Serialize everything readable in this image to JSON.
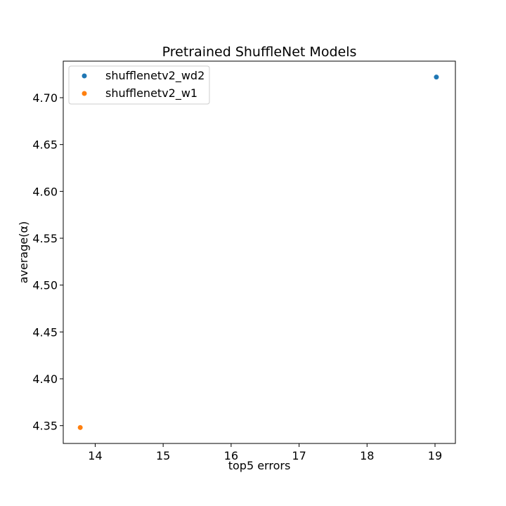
{
  "chart_data": {
    "type": "scatter",
    "title": "Pretrained ShuffleNet Models",
    "xlabel": "top5 errors",
    "ylabel": "average(α)",
    "xlim": [
      13.53,
      19.3
    ],
    "ylim": [
      4.331,
      4.739
    ],
    "xticks": [
      14,
      15,
      16,
      17,
      18,
      19
    ],
    "yticks": [
      4.35,
      4.4,
      4.45,
      4.5,
      4.55,
      4.6,
      4.65,
      4.7
    ],
    "ytick_labels": [
      "4.35",
      "4.40",
      "4.45",
      "4.50",
      "4.55",
      "4.60",
      "4.65",
      "4.70"
    ],
    "grid": false,
    "legend_position": "upper-left",
    "series": [
      {
        "name": "shufflenetv2_wd2",
        "color": "#1f77b4",
        "points": [
          {
            "x": 19.02,
            "y": 4.722
          }
        ]
      },
      {
        "name": "shufflenetv2_w1",
        "color": "#ff7f0e",
        "points": [
          {
            "x": 13.78,
            "y": 4.348
          }
        ]
      }
    ]
  }
}
